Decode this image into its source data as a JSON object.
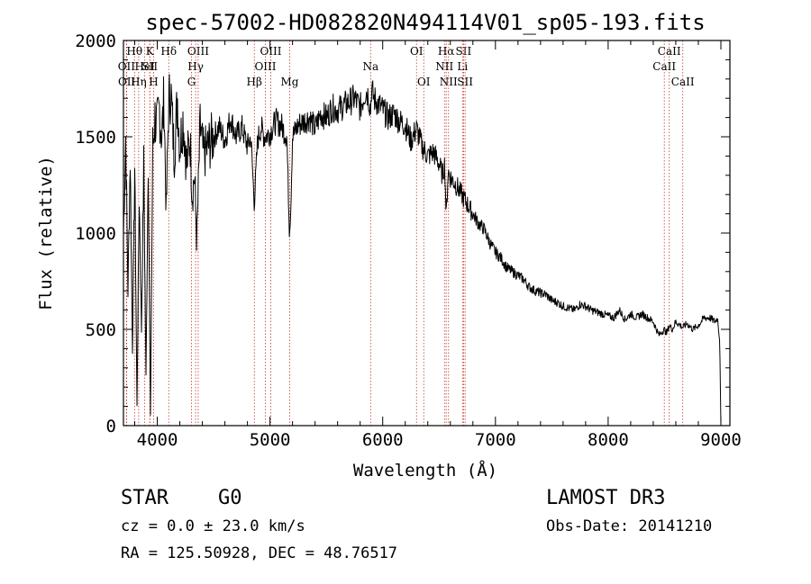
{
  "chart_data": {
    "type": "line",
    "title": "spec-57002-HD082820N494114V01_sp05-193.fits",
    "xlabel": "Wavelength (Å)",
    "ylabel": "Flux (relative)",
    "xlim": [
      3700,
      9080
    ],
    "ylim": [
      0,
      2000
    ],
    "xticks": [
      4000,
      5000,
      6000,
      7000,
      8000,
      9000
    ],
    "yticks": [
      0,
      500,
      1000,
      1500,
      2000
    ],
    "grid": false,
    "series": [
      {
        "x": [
          3700,
          3720,
          3740,
          3760,
          3780,
          3800,
          3820,
          3840,
          3860,
          3880,
          3900,
          3920,
          3940,
          3960,
          3980,
          4000,
          4020,
          4040,
          4060,
          4080,
          4100,
          4120,
          4150,
          4180,
          4200,
          4230,
          4260,
          4290,
          4310,
          4330,
          4350,
          4380,
          4410,
          4450,
          4500,
          4550,
          4600,
          4650,
          4700,
          4750,
          4800,
          4830,
          4861,
          4890,
          4920,
          4950,
          5000,
          5050,
          5100,
          5150,
          5172,
          5183,
          5200,
          5250,
          5300,
          5350,
          5400,
          5450,
          5500,
          5550,
          5600,
          5650,
          5700,
          5750,
          5800,
          5850,
          5870,
          5893,
          5900,
          5920,
          5950,
          6000,
          6050,
          6100,
          6150,
          6200,
          6250,
          6300,
          6350,
          6400,
          6450,
          6500,
          6530,
          6550,
          6563,
          6580,
          6600,
          6650,
          6700,
          6750,
          6800,
          6850,
          6900,
          6950,
          7000,
          7050,
          7100,
          7150,
          7200,
          7250,
          7300,
          7350,
          7400,
          7450,
          7500,
          7550,
          7600,
          7650,
          7700,
          7750,
          7800,
          7850,
          7900,
          7950,
          8000,
          8050,
          8100,
          8150,
          8200,
          8250,
          8300,
          8350,
          8400,
          8450,
          8498,
          8520,
          8542,
          8570,
          8600,
          8662,
          8700,
          8750,
          8800,
          8850,
          8900,
          8950,
          8970,
          8990,
          9000
        ],
        "y": [
          1000,
          1500,
          700,
          1400,
          400,
          1350,
          100,
          1200,
          500,
          1350,
          250,
          1400,
          50,
          1450,
          1600,
          1550,
          1650,
          1500,
          1700,
          1100,
          1650,
          1750,
          1400,
          1700,
          1450,
          1600,
          1350,
          1500,
          1200,
          1300,
          950,
          1550,
          1400,
          1450,
          1500,
          1550,
          1480,
          1600,
          1500,
          1550,
          1450,
          1500,
          1150,
          1480,
          1550,
          1500,
          1520,
          1580,
          1560,
          1500,
          1020,
          1100,
          1500,
          1560,
          1580,
          1600,
          1540,
          1620,
          1600,
          1650,
          1640,
          1660,
          1680,
          1700,
          1650,
          1740,
          1720,
          1640,
          1750,
          1700,
          1680,
          1640,
          1600,
          1620,
          1580,
          1560,
          1480,
          1540,
          1450,
          1400,
          1420,
          1360,
          1300,
          1360,
          1080,
          1320,
          1290,
          1250,
          1200,
          1150,
          1100,
          1050,
          1020,
          950,
          900,
          870,
          820,
          800,
          780,
          760,
          720,
          700,
          690,
          680,
          650,
          640,
          620,
          610,
          600,
          630,
          620,
          600,
          590,
          580,
          570,
          560,
          600,
          550,
          580,
          560,
          580,
          560,
          540,
          470,
          500,
          480,
          520,
          500,
          540,
          510,
          530,
          500,
          520,
          560,
          560,
          540,
          560,
          440,
          0
        ]
      }
    ],
    "line_markers": [
      {
        "name": "Hθ",
        "x": 3798,
        "row": 1
      },
      {
        "name": "OII",
        "x": 3727,
        "row": 2
      },
      {
        "name": "OII",
        "x": 3729,
        "row": 3
      },
      {
        "name": "HeI",
        "x": 3889,
        "row": 2
      },
      {
        "name": "Hη",
        "x": 3835,
        "row": 3
      },
      {
        "name": "K",
        "x": 3934,
        "row": 1
      },
      {
        "name": "SII",
        "x": 3934,
        "row": 2
      },
      {
        "name": "H",
        "x": 3968,
        "row": 3
      },
      {
        "name": "Hδ",
        "x": 4102,
        "row": 1
      },
      {
        "name": "OIII",
        "x": 4363,
        "row": 1
      },
      {
        "name": "Hγ",
        "x": 4340,
        "row": 2
      },
      {
        "name": "G",
        "x": 4304,
        "row": 3
      },
      {
        "name": "Hβ",
        "x": 4861,
        "row": 3
      },
      {
        "name": "OIII",
        "x": 5007,
        "row": 1
      },
      {
        "name": "OIII",
        "x": 4959,
        "row": 2
      },
      {
        "name": "Mg",
        "x": 5175,
        "row": 3
      },
      {
        "name": "Na",
        "x": 5893,
        "row": 2
      },
      {
        "name": "OI",
        "x": 6300,
        "row": 1
      },
      {
        "name": "OI",
        "x": 6364,
        "row": 3
      },
      {
        "name": "Hα",
        "x": 6563,
        "row": 1
      },
      {
        "name": "SII",
        "x": 6717,
        "row": 1
      },
      {
        "name": "NII",
        "x": 6548,
        "row": 2
      },
      {
        "name": "Li",
        "x": 6708,
        "row": 2
      },
      {
        "name": "NII",
        "x": 6584,
        "row": 3
      },
      {
        "name": "SII",
        "x": 6731,
        "row": 3
      },
      {
        "name": "CaII",
        "x": 8542,
        "row": 1
      },
      {
        "name": "CaII",
        "x": 8498,
        "row": 2
      },
      {
        "name": "CaII",
        "x": 8662,
        "row": 3
      }
    ]
  },
  "info": {
    "object_type": "STAR",
    "subclass": "G0",
    "survey": "LAMOST DR3",
    "redshift": "cz = 0.0 ± 23.0 km/s",
    "obs_date": "Obs-Date: 20141210",
    "coords": "RA = 125.50928, DEC =  48.76517"
  }
}
